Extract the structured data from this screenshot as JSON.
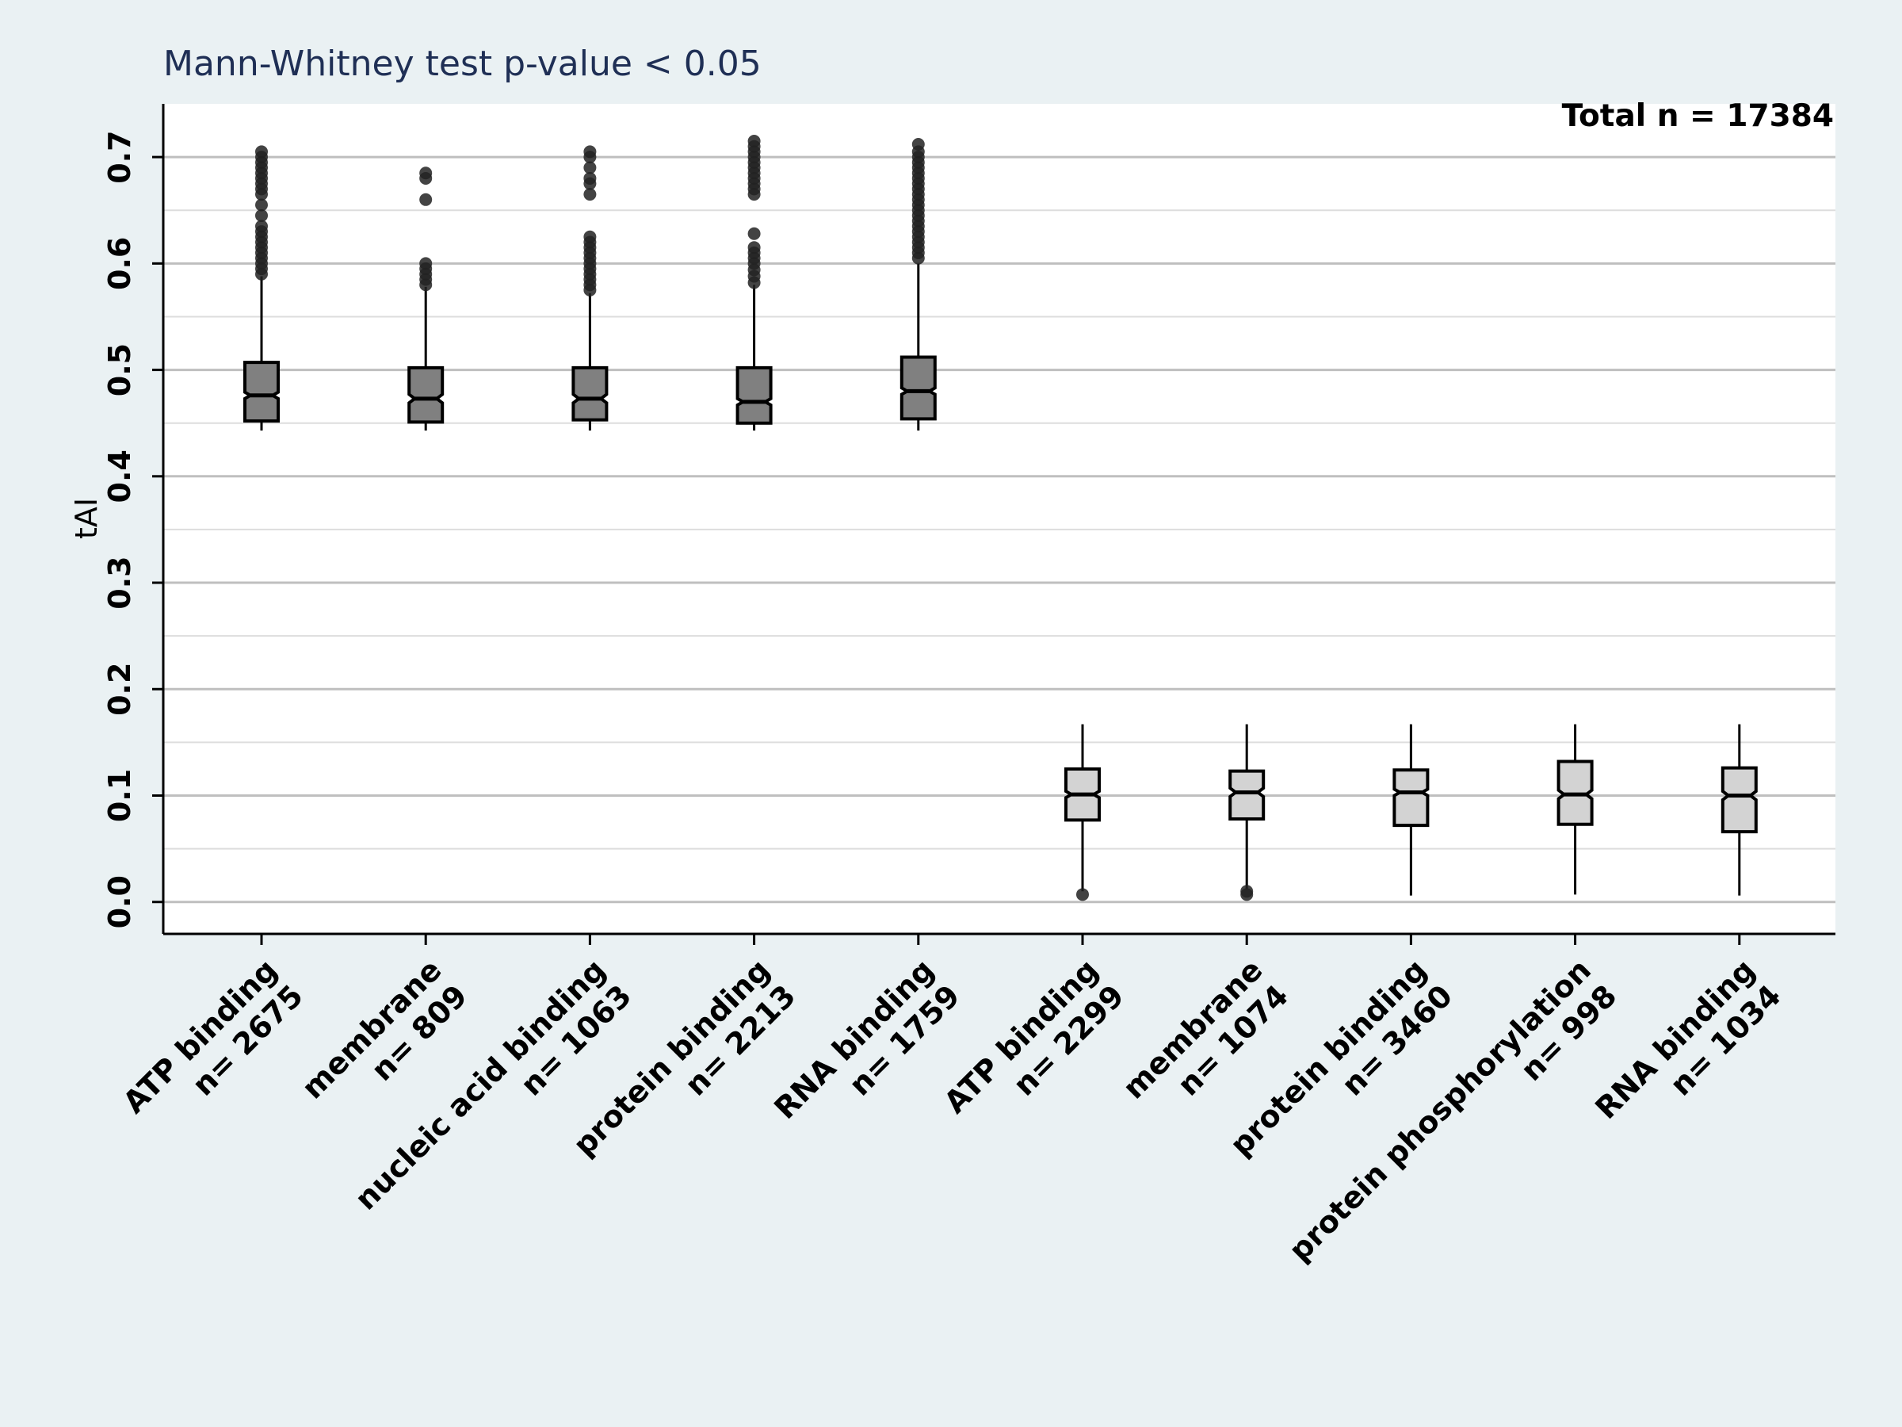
{
  "chart_data": {
    "type": "box",
    "title": "Mann-Whitney test  p-value < 0.05",
    "annotation": "Total n = 17384",
    "ylabel": "tAI",
    "ylim": [
      -0.03,
      0.75
    ],
    "yticks": [
      "0.0",
      "0.1",
      "0.2",
      "0.3",
      "0.4",
      "0.5",
      "0.6",
      "0.7"
    ],
    "grid": true,
    "colors": {
      "background": "#eaf1f3",
      "plot_background": "#ffffff",
      "group_high_fill": "#808080",
      "group_low_fill": "#d3d3d3",
      "outline": "#000000",
      "grid_major": "#bfbfbf",
      "grid_minor": "#dddddd",
      "title": "#1f2f55"
    },
    "boxes": [
      {
        "category": "ATP binding",
        "n_label": "n= 2675",
        "group": "high",
        "whisker_low": 0.443,
        "q1": 0.452,
        "median": 0.476,
        "q3": 0.507,
        "whisker_high": 0.588,
        "notch_low": 0.473,
        "notch_high": 0.479,
        "outliers": [
          0.59,
          0.595,
          0.6,
          0.605,
          0.61,
          0.615,
          0.62,
          0.625,
          0.63,
          0.635,
          0.645,
          0.655,
          0.665,
          0.67,
          0.675,
          0.68,
          0.685,
          0.69,
          0.695,
          0.7,
          0.705
        ]
      },
      {
        "category": "membrane",
        "n_label": "n= 809",
        "group": "high",
        "whisker_low": 0.443,
        "q1": 0.451,
        "median": 0.473,
        "q3": 0.502,
        "whisker_high": 0.578,
        "notch_low": 0.469,
        "notch_high": 0.477,
        "outliers": [
          0.58,
          0.585,
          0.59,
          0.595,
          0.6,
          0.66,
          0.68,
          0.685
        ]
      },
      {
        "category": "nucleic acid binding",
        "n_label": "n= 1063",
        "group": "high",
        "whisker_low": 0.443,
        "q1": 0.453,
        "median": 0.473,
        "q3": 0.502,
        "whisker_high": 0.572,
        "notch_low": 0.469,
        "notch_high": 0.477,
        "outliers": [
          0.575,
          0.58,
          0.585,
          0.59,
          0.595,
          0.6,
          0.605,
          0.61,
          0.615,
          0.62,
          0.625,
          0.665,
          0.675,
          0.68,
          0.69,
          0.7,
          0.705
        ]
      },
      {
        "category": "protein binding",
        "n_label": "n= 2213",
        "group": "high",
        "whisker_low": 0.443,
        "q1": 0.45,
        "median": 0.47,
        "q3": 0.502,
        "whisker_high": 0.58,
        "notch_low": 0.467,
        "notch_high": 0.473,
        "outliers": [
          0.582,
          0.588,
          0.594,
          0.6,
          0.605,
          0.61,
          0.615,
          0.628,
          0.665,
          0.67,
          0.675,
          0.68,
          0.685,
          0.69,
          0.695,
          0.7,
          0.705,
          0.71,
          0.715
        ]
      },
      {
        "category": "RNA binding",
        "n_label": "n= 1759",
        "group": "high",
        "whisker_low": 0.443,
        "q1": 0.454,
        "median": 0.48,
        "q3": 0.512,
        "whisker_high": 0.6,
        "notch_low": 0.477,
        "notch_high": 0.483,
        "outliers": [
          0.605,
          0.61,
          0.615,
          0.62,
          0.625,
          0.63,
          0.635,
          0.64,
          0.645,
          0.65,
          0.655,
          0.66,
          0.665,
          0.67,
          0.675,
          0.68,
          0.685,
          0.69,
          0.695,
          0.7,
          0.705,
          0.712
        ]
      },
      {
        "category": "ATP binding",
        "n_label": "n= 2299",
        "group": "low",
        "whisker_low": 0.01,
        "q1": 0.077,
        "median": 0.101,
        "q3": 0.125,
        "whisker_high": 0.167,
        "notch_low": 0.098,
        "notch_high": 0.104,
        "outliers": [
          0.007
        ]
      },
      {
        "category": "membrane",
        "n_label": "n= 1074",
        "group": "low",
        "whisker_low": 0.012,
        "q1": 0.078,
        "median": 0.103,
        "q3": 0.123,
        "whisker_high": 0.167,
        "notch_low": 0.099,
        "notch_high": 0.107,
        "outliers": [
          0.007,
          0.01
        ]
      },
      {
        "category": "protein binding",
        "n_label": "n= 3460",
        "group": "low",
        "whisker_low": 0.006,
        "q1": 0.072,
        "median": 0.103,
        "q3": 0.124,
        "whisker_high": 0.167,
        "notch_low": 0.1,
        "notch_high": 0.106,
        "outliers": []
      },
      {
        "category": "protein phosphorylation",
        "n_label": "n= 998",
        "group": "low",
        "whisker_low": 0.007,
        "q1": 0.073,
        "median": 0.101,
        "q3": 0.132,
        "whisker_high": 0.167,
        "notch_low": 0.097,
        "notch_high": 0.105,
        "outliers": []
      },
      {
        "category": "RNA binding",
        "n_label": "n= 1034",
        "group": "low",
        "whisker_low": 0.006,
        "q1": 0.066,
        "median": 0.1,
        "q3": 0.126,
        "whisker_high": 0.167,
        "notch_low": 0.096,
        "notch_high": 0.104,
        "outliers": []
      }
    ]
  }
}
